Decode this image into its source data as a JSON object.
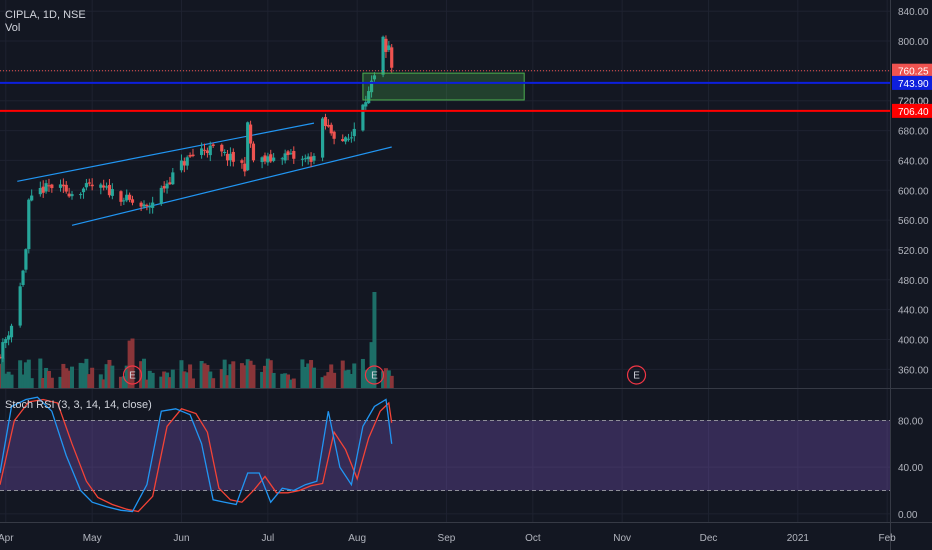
{
  "header": {
    "title": "CIPLA, 1D, NSE",
    "volume_label": "Vol"
  },
  "rsi_panel": {
    "label": "Stoch RSI (3, 3, 14, 14, close)"
  },
  "colors": {
    "background": "#131722",
    "grid": "#1e2230",
    "axis_text": "#b2b5be",
    "up": "#26a69a",
    "down": "#ef5350",
    "vol_up": "#1d6e67",
    "vol_down": "#8a3539",
    "channel": "#2196f3",
    "blue_level": "#0d1fdd",
    "red_level": "#ff0000",
    "price_line": "#ef5350",
    "zone": "#4caf50",
    "rsi_k": "#2196f3",
    "rsi_d": "#f44336",
    "rsi_band": "#7e57c2",
    "earnings": "#f23645"
  },
  "chart_data": [
    {
      "type": "candlestick",
      "title": "CIPLA, 1D, NSE",
      "x_range": [
        "2020-03-30",
        "2021-02-02"
      ],
      "ylim": [
        335,
        855
      ],
      "y_ticks": [
        "840.00",
        "800.00",
        "760.00",
        "720.00",
        "680.00",
        "640.00",
        "600.00",
        "560.00",
        "520.00",
        "480.00",
        "440.00",
        "400.00",
        "360.00"
      ],
      "y_tick_values": [
        840,
        800,
        760,
        720,
        680,
        640,
        600,
        560,
        520,
        480,
        440,
        400,
        360
      ],
      "x_ticks": [
        "Apr",
        "May",
        "Jun",
        "Jul",
        "Aug",
        "Sep",
        "Oct",
        "Nov",
        "Dec",
        "2021",
        "Feb"
      ],
      "x_tick_dates": [
        "2020-04-01",
        "2020-05-01",
        "2020-06-01",
        "2020-07-01",
        "2020-08-01",
        "2020-09-01",
        "2020-10-01",
        "2020-11-01",
        "2020-12-01",
        "2021-01-01",
        "2021-02-01"
      ],
      "grid": true,
      "last_price": {
        "value": 760.25,
        "label": "760.25"
      },
      "levels": [
        {
          "name": "resistance",
          "value": 743.9,
          "label": "743.90",
          "color": "#0d1fdd"
        },
        {
          "name": "support",
          "value": 706.4,
          "label": "706.40",
          "color": "#ff0000"
        }
      ],
      "hidden_label": "720.00",
      "zone": {
        "from": "2020-08-03",
        "to": "2020-09-28",
        "low": 721,
        "high": 757
      },
      "channel": {
        "upper": [
          [
            "2020-04-05",
            612
          ],
          [
            "2020-07-17",
            690
          ]
        ],
        "lower": [
          [
            "2020-04-24",
            553
          ],
          [
            "2020-08-13",
            658
          ]
        ]
      },
      "earnings": [
        {
          "date": "2020-05-15",
          "label": "E"
        },
        {
          "date": "2020-08-07",
          "label": "E"
        },
        {
          "date": "2020-11-06",
          "label": "E"
        }
      ],
      "anchors": [
        [
          "2020-03-30",
          382
        ],
        [
          "2020-04-03",
          420
        ],
        [
          "2020-04-06",
          470
        ],
        [
          "2020-04-08",
          520
        ],
        [
          "2020-04-09",
          582
        ],
        [
          "2020-04-13",
          600
        ],
        [
          "2020-04-17",
          605
        ],
        [
          "2020-04-24",
          597
        ],
        [
          "2020-05-01",
          605
        ],
        [
          "2020-05-08",
          598
        ],
        [
          "2020-05-14",
          585
        ],
        [
          "2020-05-20",
          575
        ],
        [
          "2020-05-26",
          605
        ],
        [
          "2020-06-01",
          635
        ],
        [
          "2020-06-08",
          655
        ],
        [
          "2020-06-12",
          655
        ],
        [
          "2020-06-19",
          640
        ],
        [
          "2020-06-23",
          632
        ],
        [
          "2020-06-24",
          685
        ],
        [
          "2020-06-26",
          640
        ],
        [
          "2020-07-01",
          640
        ],
        [
          "2020-07-06",
          648
        ],
        [
          "2020-07-13",
          640
        ],
        [
          "2020-07-17",
          645
        ],
        [
          "2020-07-20",
          690
        ],
        [
          "2020-07-24",
          675
        ],
        [
          "2020-07-28",
          665
        ],
        [
          "2020-07-30",
          672
        ],
        [
          "2020-08-03",
          720
        ],
        [
          "2020-08-05",
          730
        ],
        [
          "2020-08-07",
          750
        ],
        [
          "2020-08-10",
          800
        ],
        [
          "2020-08-11",
          780
        ],
        [
          "2020-08-12",
          790
        ],
        [
          "2020-08-13",
          760
        ]
      ]
    },
    {
      "type": "bar",
      "name": "Vol",
      "note": "volume histogram, relative heights",
      "earnings_days": [
        "2020-05-15",
        "2020-08-07"
      ]
    },
    {
      "type": "line",
      "title": "Stoch RSI (3, 3, 14, 14, close)",
      "ylim": [
        -7,
        107
      ],
      "y_ticks": [
        "80.00",
        "40.00",
        "0.00"
      ],
      "y_tick_values": [
        80,
        40,
        0
      ],
      "bands": [
        20,
        80
      ],
      "series": [
        {
          "name": "K",
          "color": "#2196f3",
          "x": [
            "2020-03-30",
            "2020-04-03",
            "2020-04-08",
            "2020-04-12",
            "2020-04-17",
            "2020-04-22",
            "2020-04-27",
            "2020-05-01",
            "2020-05-06",
            "2020-05-11",
            "2020-05-15",
            "2020-05-20",
            "2020-05-25",
            "2020-05-30",
            "2020-06-04",
            "2020-06-08",
            "2020-06-12",
            "2020-06-16",
            "2020-06-20",
            "2020-06-24",
            "2020-06-28",
            "2020-07-02",
            "2020-07-06",
            "2020-07-10",
            "2020-07-14",
            "2020-07-18",
            "2020-07-22",
            "2020-07-26",
            "2020-07-30",
            "2020-08-03",
            "2020-08-07",
            "2020-08-11",
            "2020-08-13"
          ],
          "values": [
            35,
            92,
            98,
            100,
            88,
            50,
            20,
            10,
            6,
            3,
            2,
            25,
            88,
            90,
            85,
            60,
            12,
            10,
            8,
            35,
            35,
            10,
            22,
            20,
            25,
            28,
            88,
            40,
            25,
            75,
            92,
            98,
            60
          ]
        },
        {
          "name": "D",
          "color": "#f44336",
          "x": [
            "2020-03-30",
            "2020-04-04",
            "2020-04-09",
            "2020-04-14",
            "2020-04-19",
            "2020-04-24",
            "2020-04-29",
            "2020-05-03",
            "2020-05-08",
            "2020-05-13",
            "2020-05-17",
            "2020-05-22",
            "2020-05-27",
            "2020-06-01",
            "2020-06-06",
            "2020-06-10",
            "2020-06-14",
            "2020-06-18",
            "2020-06-22",
            "2020-06-26",
            "2020-06-30",
            "2020-07-04",
            "2020-07-08",
            "2020-07-12",
            "2020-07-16",
            "2020-07-20",
            "2020-07-24",
            "2020-07-28",
            "2020-08-01",
            "2020-08-05",
            "2020-08-09",
            "2020-08-12",
            "2020-08-13"
          ],
          "values": [
            25,
            80,
            96,
            98,
            95,
            60,
            28,
            14,
            8,
            4,
            2,
            15,
            75,
            90,
            86,
            70,
            22,
            12,
            10,
            20,
            32,
            18,
            18,
            20,
            24,
            26,
            70,
            55,
            30,
            65,
            88,
            95,
            78
          ]
        }
      ]
    }
  ]
}
